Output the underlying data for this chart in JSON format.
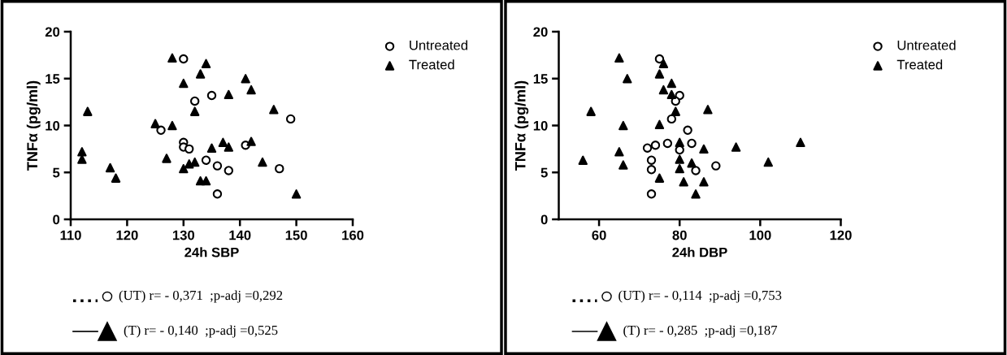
{
  "chart_data": [
    {
      "type": "scatter",
      "xlabel": "24h SBP",
      "ylabel": "TNFα (pg/ml)",
      "xlim": [
        110,
        160
      ],
      "xticks": [
        110,
        120,
        130,
        140,
        150,
        160
      ],
      "ylim": [
        0,
        20
      ],
      "yticks": [
        0,
        5,
        10,
        15,
        20
      ],
      "grid": false,
      "legend": "top right",
      "series": [
        {
          "name": "Untreated",
          "color": "#000000",
          "marker": "circle",
          "x": [
            130,
            135,
            132,
            149,
            126,
            130,
            130,
            131,
            141,
            134,
            136,
            138,
            147,
            136
          ],
          "values": [
            17.1,
            13.2,
            12.6,
            10.7,
            9.5,
            8.2,
            7.7,
            7.5,
            7.9,
            6.3,
            5.7,
            5.2,
            5.4,
            2.7
          ]
        },
        {
          "name": "Treated",
          "color": "#000000",
          "marker": "triangle",
          "x": [
            128,
            134,
            133,
            130,
            141,
            142,
            138,
            113,
            132,
            146,
            125,
            128,
            112,
            112,
            127,
            117,
            118,
            130,
            131,
            132,
            133,
            134,
            135,
            137,
            138,
            142,
            144,
            150
          ],
          "values": [
            17.2,
            16.6,
            15.5,
            14.5,
            15.0,
            13.8,
            13.3,
            11.5,
            11.5,
            11.7,
            10.2,
            10.0,
            7.2,
            6.4,
            6.5,
            5.5,
            4.4,
            5.4,
            5.9,
            6.1,
            4.1,
            4.1,
            7.6,
            8.2,
            7.7,
            8.3,
            6.1,
            2.7
          ]
        }
      ],
      "annotations": [
        "(UT) r= - 0,371  ;p-adj =0,292",
        "(T) r= - 0,140  ;p-adj =0,525"
      ]
    },
    {
      "type": "scatter",
      "xlabel": "24h DBP",
      "ylabel": "TNFα (pg/ml)",
      "xlim": [
        50,
        120
      ],
      "xticks": [
        60,
        80,
        100,
        120
      ],
      "ylim": [
        0,
        20
      ],
      "yticks": [
        0,
        5,
        10,
        15,
        20
      ],
      "grid": false,
      "legend": "top right",
      "series": [
        {
          "name": "Untreated",
          "color": "#000000",
          "marker": "circle",
          "x": [
            75,
            80,
            79,
            78,
            82,
            72,
            74,
            77,
            83,
            80,
            73,
            73,
            84,
            89,
            73
          ],
          "values": [
            17.1,
            13.2,
            12.6,
            10.7,
            9.5,
            7.6,
            7.9,
            8.1,
            8.1,
            7.4,
            6.3,
            5.3,
            5.2,
            5.7,
            2.7
          ]
        },
        {
          "name": "Treated",
          "color": "#000000",
          "marker": "triangle",
          "x": [
            65,
            76,
            75,
            67,
            78,
            76,
            78,
            58,
            79,
            87,
            75,
            66,
            80,
            65,
            56,
            66,
            86,
            94,
            102,
            110,
            80,
            80,
            83,
            75,
            81,
            86,
            84
          ],
          "values": [
            17.2,
            16.6,
            15.5,
            15.0,
            14.5,
            13.8,
            13.3,
            11.5,
            11.5,
            11.7,
            10.1,
            10.0,
            8.2,
            7.2,
            6.3,
            5.8,
            7.5,
            7.7,
            6.1,
            8.2,
            6.4,
            5.4,
            6.0,
            4.4,
            4.0,
            4.0,
            2.7
          ]
        }
      ],
      "annotations": [
        "(UT) r= - 0,114  ;p-adj =0,753",
        "(T) r= - 0,285  ;p-adj =0,187"
      ]
    }
  ]
}
